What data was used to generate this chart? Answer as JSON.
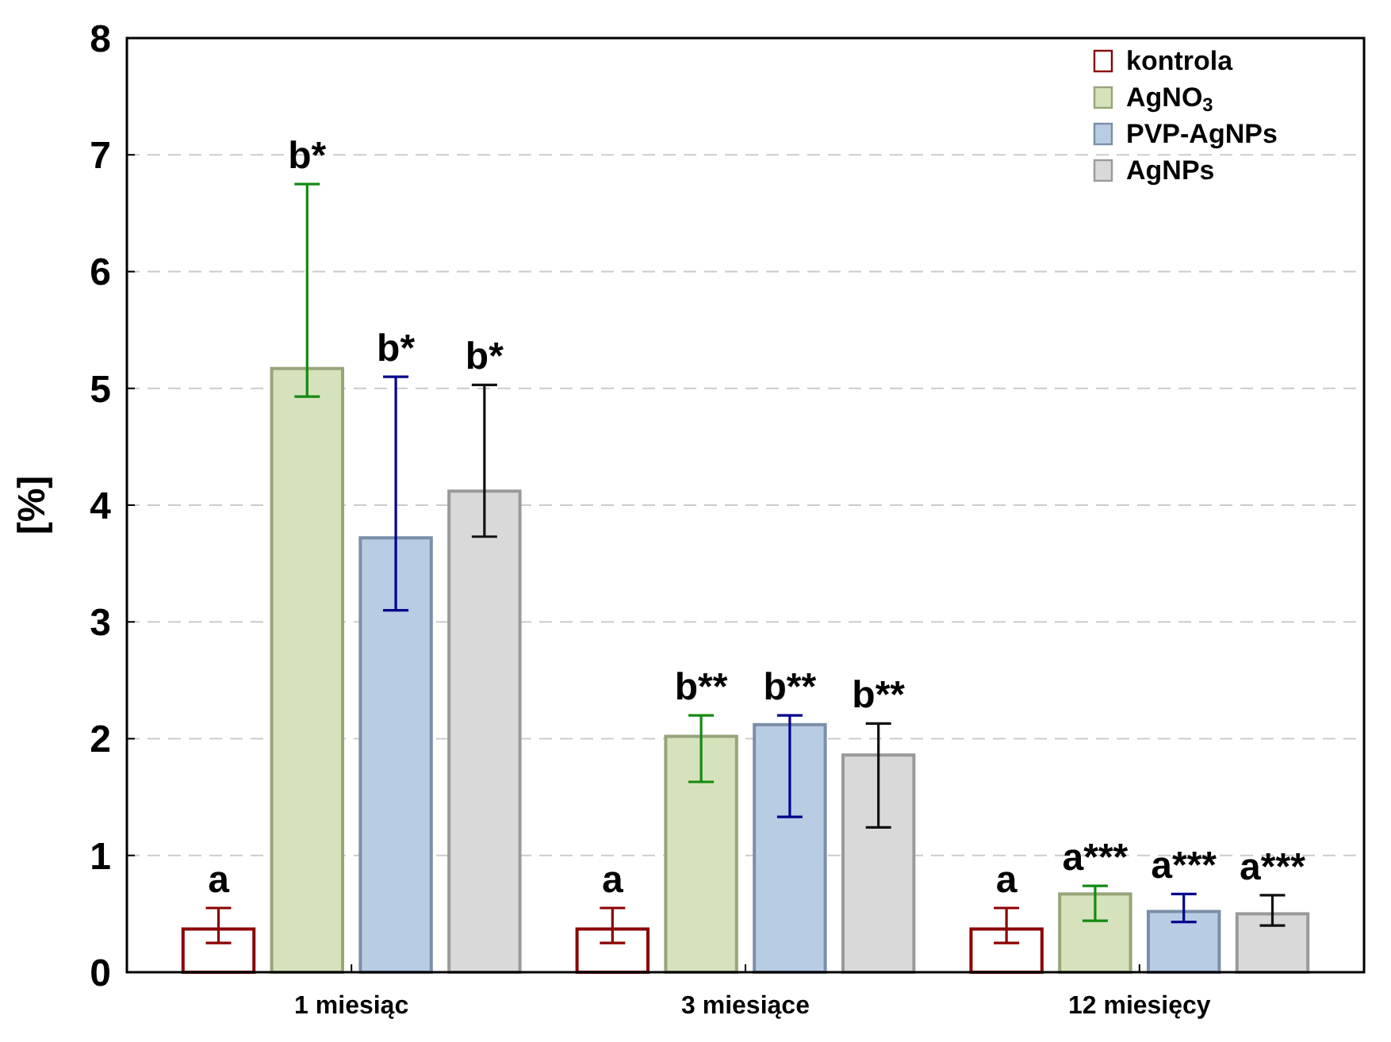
{
  "chart_data": {
    "type": "bar",
    "ylabel": "[%]",
    "categories": [
      "1 miesiąc",
      "3 miesiące",
      "12 miesięcy"
    ],
    "series": [
      {
        "name": "kontrola",
        "color": "#ffffff",
        "values": [
          0.37,
          0.37,
          0.37
        ],
        "errors": [
          [
            0.25,
            0.55
          ],
          [
            0.25,
            0.55
          ],
          [
            0.25,
            0.55
          ]
        ]
      },
      {
        "name": "AgNO$_{3}$",
        "color": "#d6e2bb",
        "values": [
          5.17,
          2.02,
          0.67
        ],
        "errors": [
          [
            4.93,
            6.75
          ],
          [
            1.63,
            2.2
          ],
          [
            0.44,
            0.74
          ]
        ]
      },
      {
        "name": "PVP-AgNPs",
        "color": "#b8cce4",
        "values": [
          3.72,
          2.12,
          0.52
        ],
        "errors": [
          [
            3.1,
            5.1
          ],
          [
            1.33,
            2.2
          ],
          [
            0.43,
            0.67
          ]
        ]
      },
      {
        "name": "AgNPs",
        "color": "#d9d9d9",
        "values": [
          4.12,
          1.86,
          0.5
        ],
        "errors": [
          [
            3.73,
            5.03
          ],
          [
            1.24,
            2.13
          ],
          [
            0.4,
            0.66
          ]
        ]
      }
    ],
    "annotations": [
      "a",
      "b*",
      "b*",
      "b*",
      "a",
      "b**",
      "b**",
      "b**",
      "a",
      "a***",
      "a***",
      "a***"
    ],
    "ylim": [
      0,
      8
    ],
    "yticks": [
      0,
      1,
      2,
      3,
      4,
      5,
      6,
      7,
      8
    ],
    "grid": "y",
    "legend": "top right"
  }
}
